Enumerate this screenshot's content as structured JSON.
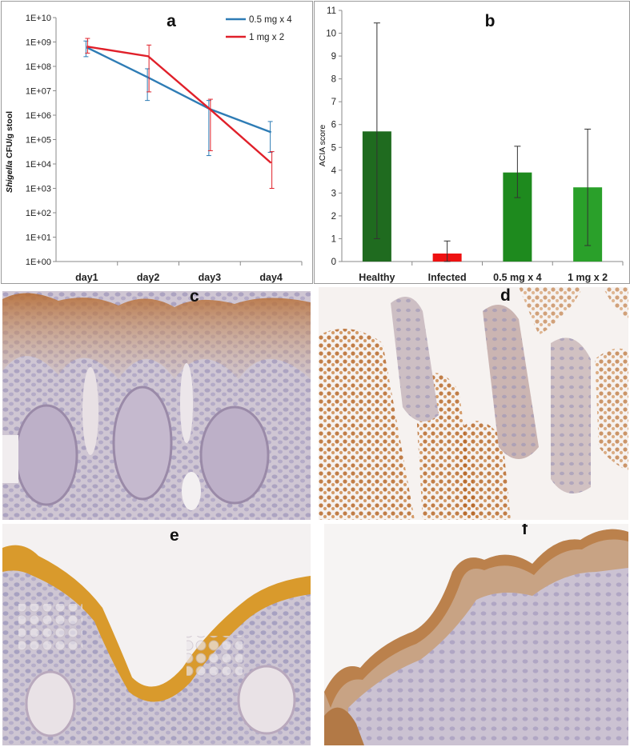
{
  "chart_data": [
    {
      "panel": "a",
      "type": "line",
      "title": "",
      "ylabel_italic": "Shigella",
      "ylabel_rest": " CFU/g stool",
      "xlabel": "",
      "yscale": "log",
      "ylim": [
        1,
        10000000000
      ],
      "y_ticks": [
        "1E+00",
        "1E+01",
        "1E+02",
        "1E+03",
        "1E+04",
        "1E+05",
        "1E+06",
        "1E+07",
        "1E+08",
        "1E+09",
        "1E+10"
      ],
      "categories": [
        "day1",
        "day2",
        "day3",
        "day4"
      ],
      "grid": false,
      "legend": "top-right",
      "series": [
        {
          "name": "0.5 mg x 4",
          "color": "#2e7cb5",
          "values": [
            600000000,
            35000000,
            1800000,
            200000
          ],
          "err_low": [
            250000000,
            4000000,
            22000,
            30000
          ],
          "err_high": [
            1100000000,
            80000000,
            4000000,
            550000
          ]
        },
        {
          "name": "1 mg x 2",
          "color": "#e0202a",
          "values": [
            650000000,
            260000000,
            1800000,
            11000
          ],
          "err_low": [
            350000000,
            9000000,
            35000,
            1000
          ],
          "err_high": [
            1400000000,
            750000000,
            4500000,
            32000
          ]
        }
      ]
    },
    {
      "panel": "b",
      "type": "bar",
      "title": "",
      "ylabel": "ACIA score",
      "xlabel": "",
      "ylim": [
        0,
        11
      ],
      "y_ticks": [
        0,
        1,
        2,
        3,
        4,
        5,
        6,
        7,
        8,
        9,
        10,
        11
      ],
      "categories": [
        "Healthy",
        "Infected",
        "0.5 mg x 4",
        "1 mg x 2"
      ],
      "grid": false,
      "series": [
        {
          "values": [
            5.7,
            0.35,
            3.9,
            3.25
          ],
          "err_low": [
            1.0,
            0.0,
            2.8,
            0.7
          ],
          "err_high": [
            10.45,
            0.9,
            5.05,
            5.8
          ],
          "colors": [
            "#1f6b1f",
            "#ee1111",
            "#1e8a1e",
            "#2aa02a"
          ]
        }
      ]
    }
  ],
  "panel_labels": {
    "a": "a",
    "b": "b",
    "c": "c",
    "d": "d",
    "e": "e",
    "f": "f"
  }
}
